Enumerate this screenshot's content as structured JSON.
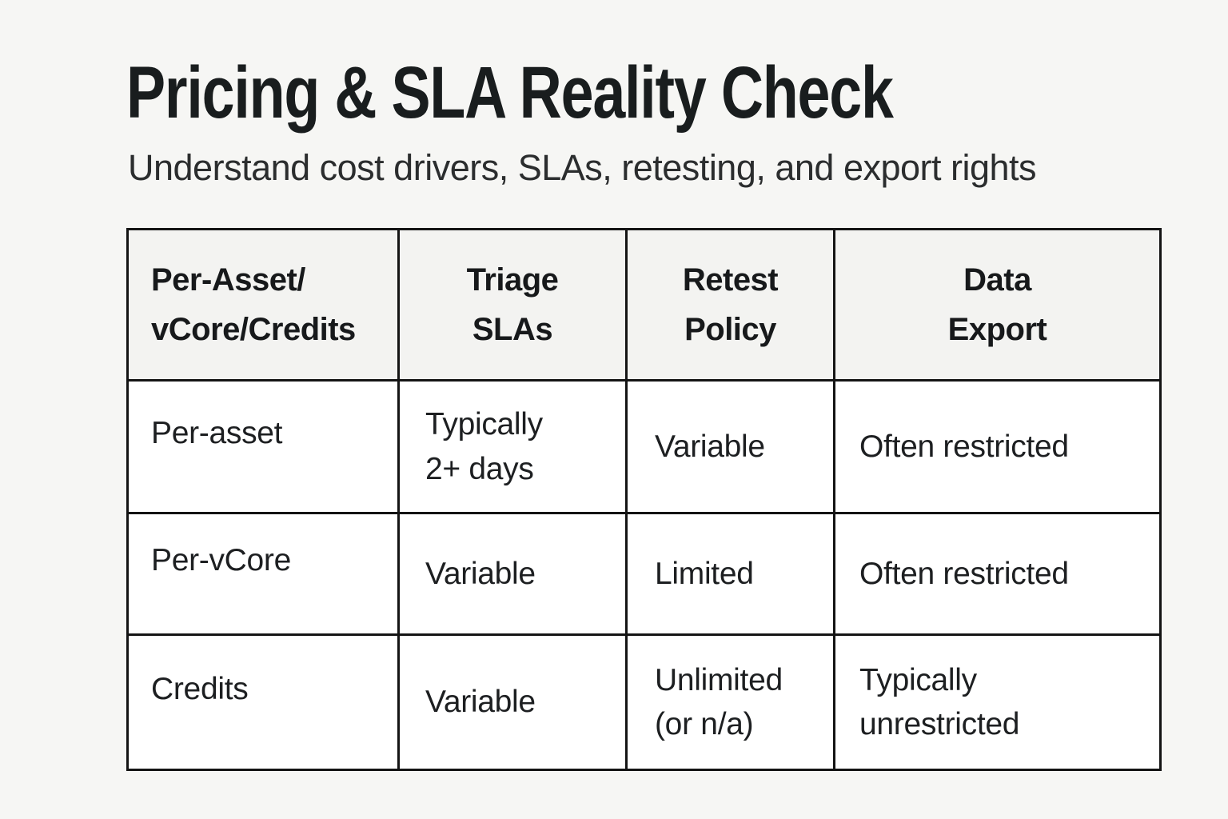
{
  "page": {
    "title": "Pricing & SLA Reality Check",
    "subtitle": "Understand cost drivers, SLAs, retesting, and export rights"
  },
  "table": {
    "columns": [
      "Per-Asset/\nvCore/Credits",
      "Triage\nSLAs",
      "Retest\nPolicy",
      "Data\nExport"
    ],
    "rows": [
      [
        "Per-asset",
        "Typically\n2+ days",
        "Variable",
        "Often restricted"
      ],
      [
        "Per-vCore",
        "Variable",
        "Limited",
        "Often restricted"
      ],
      [
        "Credits",
        "Variable",
        "Unlimited\n(or n/a)",
        "Typically\nunrestricted"
      ]
    ]
  },
  "colors": {
    "page_background": "#f6f6f4",
    "header_cell_background": "#f3f3f1",
    "body_cell_background": "#ffffff",
    "table_border": "#141414",
    "title_text": "#191d1e",
    "subtitle_text": "#2b2d2e",
    "header_text": "#17191b",
    "body_text": "#1d1f21"
  }
}
